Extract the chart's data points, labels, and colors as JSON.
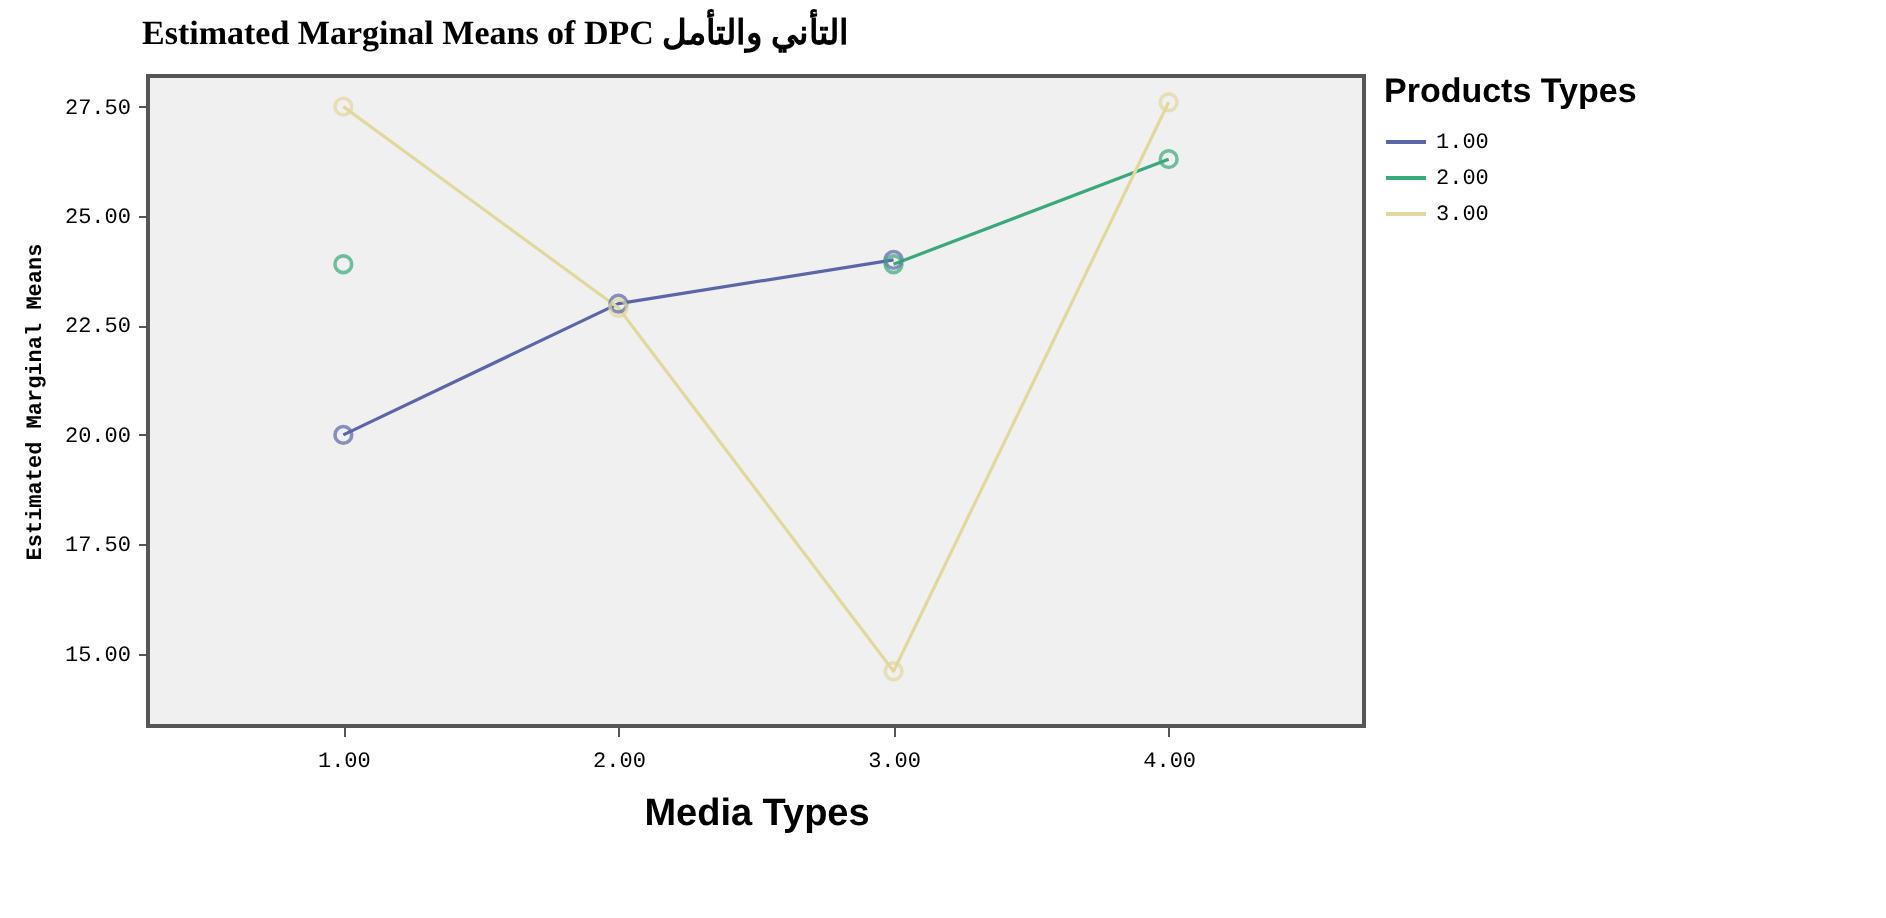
{
  "chart_data": {
    "type": "line",
    "title": "Estimated Marginal Means of DPC التأني والتأمل",
    "xlabel": "Media Types",
    "ylabel": "Estimated Marginal Means",
    "legend_title": "Products Types",
    "categories": [
      "1.00",
      "2.00",
      "3.00",
      "4.00"
    ],
    "series": [
      {
        "name": "1.00",
        "color": "#5a66a8",
        "values": [
          20.0,
          23.0,
          24.0,
          null
        ]
      },
      {
        "name": "2.00",
        "color": "#3aa87a",
        "values": [
          23.9,
          null,
          23.9,
          26.3
        ]
      },
      {
        "name": "3.00",
        "color": "#e2d89e",
        "values": [
          27.5,
          22.9,
          14.6,
          27.6
        ]
      }
    ],
    "ylim": [
      13.35,
      28.2
    ],
    "yticks": [
      {
        "value": 15,
        "label": "15.00"
      },
      {
        "value": 17.5,
        "label": "17.50"
      },
      {
        "value": 20,
        "label": "20.00"
      },
      {
        "value": 22.5,
        "label": "22.50"
      },
      {
        "value": 25,
        "label": "25.00"
      },
      {
        "value": 27.5,
        "label": "27.50"
      }
    ],
    "grid": false,
    "legend": "top right",
    "marker": "circle",
    "line_style": "solid"
  }
}
